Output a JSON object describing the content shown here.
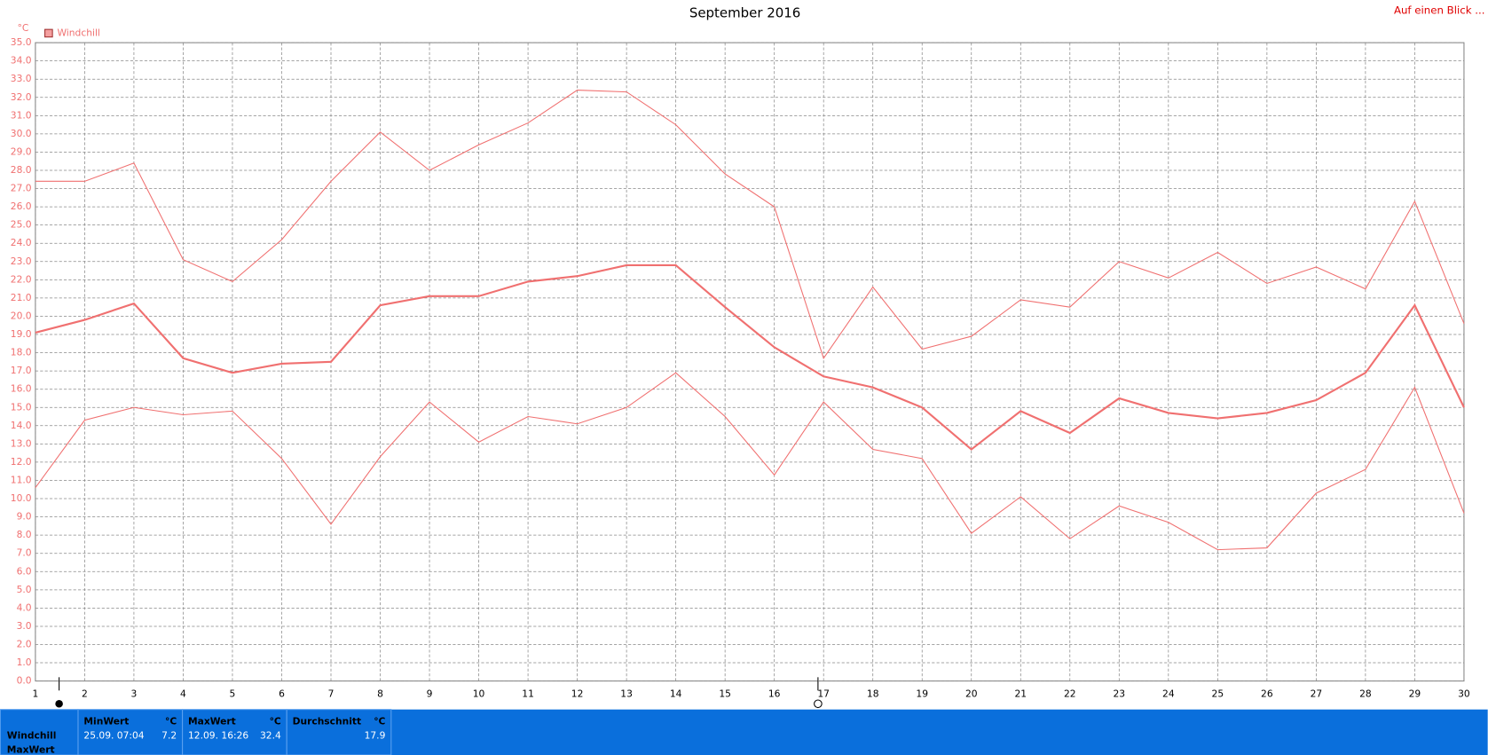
{
  "chart_data": {
    "type": "line",
    "title": "September 2016",
    "y_unit": "°C",
    "top_link": "Auf einen Blick ...",
    "x": [
      1,
      2,
      3,
      4,
      5,
      6,
      7,
      8,
      9,
      10,
      11,
      12,
      13,
      14,
      15,
      16,
      17,
      18,
      19,
      20,
      21,
      22,
      23,
      24,
      25,
      26,
      27,
      28,
      29,
      30
    ],
    "xlim": [
      1,
      30
    ],
    "xticks": [
      1,
      2,
      3,
      4,
      5,
      6,
      7,
      8,
      9,
      10,
      11,
      12,
      13,
      14,
      15,
      16,
      17,
      18,
      19,
      20,
      21,
      22,
      23,
      24,
      25,
      26,
      27,
      28,
      29,
      30
    ],
    "ylim": [
      0,
      35
    ],
    "yticks": [
      {
        "value": 0,
        "label": "0.0"
      },
      {
        "value": 1,
        "label": "1.0"
      },
      {
        "value": 2,
        "label": "2.0"
      },
      {
        "value": 3,
        "label": "3.0"
      },
      {
        "value": 4,
        "label": "4.0"
      },
      {
        "value": 5,
        "label": "5.0"
      },
      {
        "value": 6,
        "label": "6.0"
      },
      {
        "value": 7,
        "label": "7.0"
      },
      {
        "value": 8,
        "label": "8.0"
      },
      {
        "value": 9,
        "label": "9.0"
      },
      {
        "value": 10,
        "label": "10.0"
      },
      {
        "value": 11,
        "label": "11.0"
      },
      {
        "value": 12,
        "label": "12.0"
      },
      {
        "value": 13,
        "label": "13.0"
      },
      {
        "value": 14,
        "label": "14.0"
      },
      {
        "value": 15,
        "label": "15.0"
      },
      {
        "value": 16,
        "label": "16.0"
      },
      {
        "value": 17,
        "label": "17.0"
      },
      {
        "value": 18,
        "label": "18.0"
      },
      {
        "value": 19,
        "label": "19.0"
      },
      {
        "value": 20,
        "label": "20.0"
      },
      {
        "value": 21,
        "label": "21.0"
      },
      {
        "value": 22,
        "label": "22.0"
      },
      {
        "value": 23,
        "label": "23.0"
      },
      {
        "value": 24,
        "label": "24.0"
      },
      {
        "value": 25,
        "label": "25.0"
      },
      {
        "value": 26,
        "label": "26.0"
      },
      {
        "value": 27,
        "label": "27.0"
      },
      {
        "value": 28,
        "label": "28.0"
      },
      {
        "value": 29,
        "label": "29.0"
      },
      {
        "value": 30,
        "label": "30.0"
      },
      {
        "value": 31,
        "label": "31.0"
      },
      {
        "value": 32,
        "label": "32.0"
      },
      {
        "value": 33,
        "label": "33.0"
      },
      {
        "value": 34,
        "label": "34.0"
      },
      {
        "value": 35,
        "label": "35.0"
      }
    ],
    "grid": true,
    "series": [
      {
        "name": "Windchill",
        "color": "#f07070",
        "values": [
          19.1,
          19.8,
          20.7,
          17.7,
          16.9,
          17.4,
          17.5,
          20.6,
          21.1,
          21.1,
          21.9,
          22.2,
          22.8,
          22.8,
          20.5,
          18.3,
          16.7,
          16.1,
          15.0,
          12.7,
          14.8,
          13.6,
          15.5,
          14.7,
          14.4,
          14.7,
          15.4,
          16.9,
          20.6,
          15.0
        ]
      },
      {
        "color": "#f07070",
        "values": [
          27.4,
          27.4,
          28.4,
          23.1,
          21.9,
          24.2,
          27.4,
          30.1,
          28.0,
          29.4,
          30.6,
          32.4,
          32.3,
          30.5,
          27.8,
          26.0,
          17.7,
          21.6,
          18.2,
          18.9,
          20.9,
          20.5,
          23.0,
          22.1,
          23.5,
          21.8,
          22.7,
          21.5,
          26.3,
          19.6
        ]
      },
      {
        "color": "#f07070",
        "values": [
          10.6,
          14.3,
          15.0,
          14.6,
          14.8,
          12.2,
          8.6,
          12.3,
          15.3,
          13.1,
          14.5,
          14.1,
          15.0,
          16.9,
          14.5,
          11.3,
          15.3,
          12.7,
          12.2,
          8.1,
          10.1,
          7.8,
          9.6,
          8.7,
          7.2,
          7.3,
          10.3,
          11.6,
          16.1,
          9.2
        ]
      }
    ]
  },
  "summary": {
    "row_labels": [
      "Windchill",
      "MaxWert"
    ],
    "columns": [
      {
        "header": "MinWert",
        "unit": "°C",
        "date": "25.09. 07:04",
        "value": 7.2
      },
      {
        "header": "MaxWert",
        "unit": "°C",
        "date": "12.09. 16:26",
        "value": 32.4
      },
      {
        "header": "Durchschnitt",
        "unit": "°C",
        "value": 17.9
      }
    ]
  }
}
